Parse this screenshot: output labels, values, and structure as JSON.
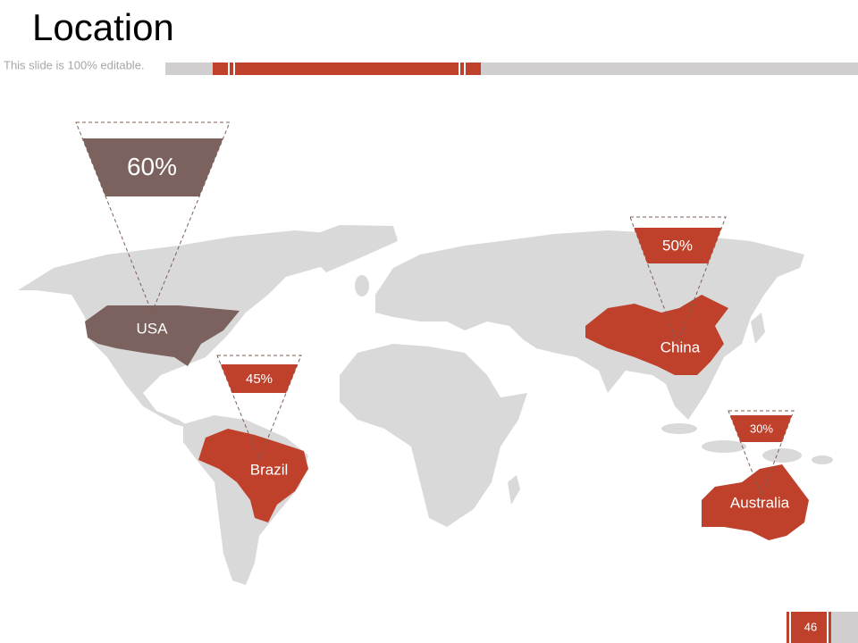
{
  "header": {
    "title": "Location",
    "subtitle": "This slide is 100% editable."
  },
  "markers": [
    {
      "country": "USA",
      "percent": "60%",
      "color": "#7b625e"
    },
    {
      "country": "Brazil",
      "percent": "45%",
      "color": "#c0412b"
    },
    {
      "country": "China",
      "percent": "50%",
      "color": "#c0412b"
    },
    {
      "country": "Australia",
      "percent": "30%",
      "color": "#c0412b"
    }
  ],
  "page_number": "46"
}
